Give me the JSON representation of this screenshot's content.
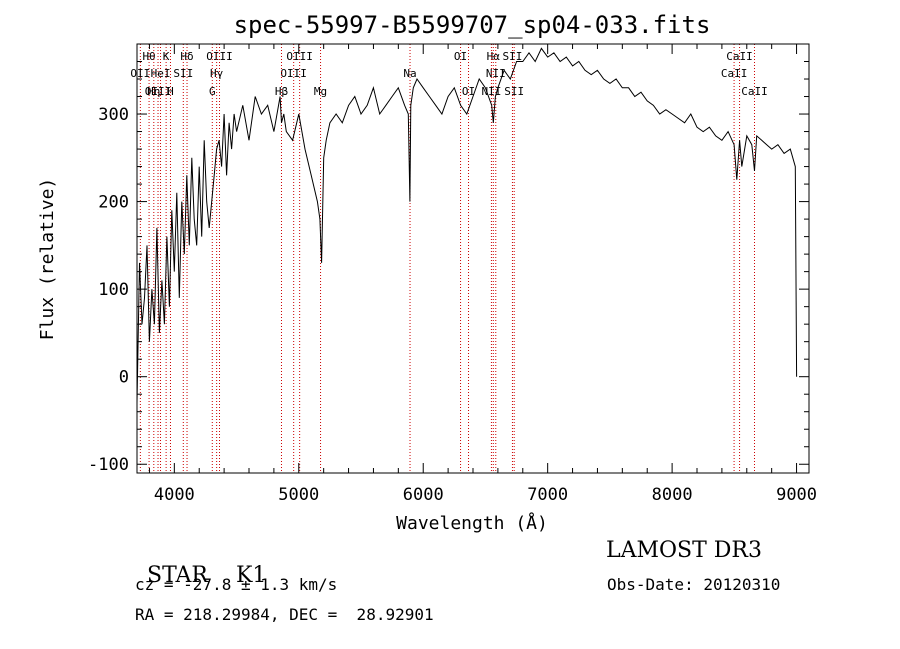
{
  "chart_data": {
    "type": "line",
    "title": "spec-55997-B5599707_sp04-033.fits",
    "xlabel": "Wavelength (Å)",
    "ylabel": "Flux (relative)",
    "xlim": [
      3700,
      9100
    ],
    "ylim": [
      -110,
      380
    ],
    "xticks": [
      4000,
      5000,
      6000,
      7000,
      8000,
      9000
    ],
    "yticks": [
      -100,
      0,
      100,
      200,
      300
    ],
    "grid": false,
    "line_color": "#000000",
    "marker_color": "#cc0000",
    "series": [
      {
        "name": "flux",
        "x": [
          3700,
          3720,
          3740,
          3760,
          3780,
          3800,
          3820,
          3840,
          3860,
          3880,
          3900,
          3920,
          3940,
          3960,
          3980,
          4000,
          4020,
          4040,
          4060,
          4080,
          4100,
          4120,
          4140,
          4160,
          4180,
          4200,
          4220,
          4240,
          4260,
          4280,
          4300,
          4320,
          4340,
          4360,
          4380,
          4400,
          4420,
          4440,
          4460,
          4480,
          4500,
          4550,
          4600,
          4650,
          4700,
          4750,
          4800,
          4850,
          4861,
          4880,
          4900,
          4950,
          5000,
          5050,
          5100,
          5150,
          5170,
          5183,
          5200,
          5220,
          5250,
          5300,
          5350,
          5400,
          5450,
          5500,
          5550,
          5600,
          5650,
          5700,
          5750,
          5800,
          5850,
          5880,
          5893,
          5900,
          5920,
          5950,
          6000,
          6050,
          6100,
          6150,
          6200,
          6250,
          6300,
          6350,
          6400,
          6450,
          6500,
          6550,
          6563,
          6580,
          6600,
          6650,
          6700,
          6750,
          6800,
          6850,
          6900,
          6950,
          7000,
          7050,
          7100,
          7150,
          7200,
          7250,
          7300,
          7350,
          7400,
          7450,
          7500,
          7550,
          7600,
          7650,
          7700,
          7750,
          7800,
          7850,
          7900,
          7950,
          8000,
          8050,
          8100,
          8150,
          8200,
          8250,
          8300,
          8350,
          8400,
          8450,
          8498,
          8520,
          8542,
          8560,
          8600,
          8640,
          8662,
          8680,
          8720,
          8760,
          8800,
          8850,
          8900,
          8950,
          8990,
          9000
        ],
        "values": [
          -30,
          130,
          60,
          90,
          150,
          40,
          100,
          60,
          170,
          50,
          110,
          60,
          160,
          80,
          190,
          120,
          210,
          90,
          200,
          140,
          230,
          150,
          250,
          180,
          150,
          240,
          160,
          270,
          200,
          170,
          200,
          230,
          260,
          270,
          240,
          300,
          230,
          290,
          260,
          300,
          280,
          310,
          270,
          320,
          300,
          310,
          280,
          320,
          290,
          300,
          280,
          270,
          300,
          260,
          230,
          200,
          180,
          130,
          250,
          270,
          290,
          300,
          290,
          310,
          320,
          300,
          310,
          330,
          300,
          310,
          320,
          330,
          310,
          300,
          200,
          310,
          330,
          340,
          330,
          320,
          310,
          300,
          320,
          330,
          310,
          300,
          320,
          340,
          330,
          310,
          290,
          320,
          330,
          350,
          340,
          360,
          360,
          370,
          360,
          375,
          365,
          370,
          360,
          365,
          355,
          360,
          350,
          345,
          350,
          340,
          335,
          340,
          330,
          330,
          320,
          325,
          315,
          310,
          300,
          305,
          300,
          295,
          290,
          300,
          285,
          280,
          285,
          275,
          270,
          280,
          265,
          225,
          270,
          240,
          275,
          265,
          235,
          275,
          270,
          265,
          260,
          265,
          255,
          260,
          240,
          0
        ]
      }
    ],
    "lines": [
      {
        "label": "Hθ",
        "x": 3797,
        "row": 1
      },
      {
        "label": "OII",
        "x": 3727,
        "row": 2
      },
      {
        "label": "OIII",
        "x": 3869,
        "row": 3
      },
      {
        "label": "K",
        "x": 3934,
        "row": 1
      },
      {
        "label": "H",
        "x": 3969,
        "row": 3
      },
      {
        "label": "HeI",
        "x": 3889,
        "row": 2
      },
      {
        "label": "SII",
        "x": 4072,
        "row": 2
      },
      {
        "label": "Hη",
        "x": 3835,
        "row": 3
      },
      {
        "label": "Hδ",
        "x": 4102,
        "row": 1
      },
      {
        "label": "OIII",
        "x": 4363,
        "row": 1
      },
      {
        "label": "Hγ",
        "x": 4340,
        "row": 2
      },
      {
        "label": "G",
        "x": 4305,
        "row": 3
      },
      {
        "label": "OIII",
        "x": 5007,
        "row": 1
      },
      {
        "label": "OIII",
        "x": 4959,
        "row": 2
      },
      {
        "label": "Hβ",
        "x": 4861,
        "row": 3
      },
      {
        "label": "Mg",
        "x": 5175,
        "row": 3
      },
      {
        "label": "Na",
        "x": 5894,
        "row": 2
      },
      {
        "label": "OI",
        "x": 6300,
        "row": 1
      },
      {
        "label": "OI",
        "x": 6364,
        "row": 3
      },
      {
        "label": "Hα",
        "x": 6563,
        "row": 1
      },
      {
        "label": "SII",
        "x": 6717,
        "row": 1
      },
      {
        "label": "NII",
        "x": 6583,
        "row": 2
      },
      {
        "label": "NII",
        "x": 6548,
        "row": 3
      },
      {
        "label": "SII",
        "x": 6731,
        "row": 3
      },
      {
        "label": "CaII",
        "x": 8542,
        "row": 1
      },
      {
        "label": "CaII",
        "x": 8498,
        "row": 2
      },
      {
        "label": "CaII",
        "x": 8662,
        "row": 3
      }
    ]
  },
  "footer": {
    "class": "STAR",
    "subclass": "K1",
    "cz": "cz = -27.8 ± 1.3 km/s",
    "coords": "RA = 218.29984, DEC =  28.92901",
    "survey": "LAMOST DR3",
    "obs_date": "Obs-Date: 20120310"
  }
}
